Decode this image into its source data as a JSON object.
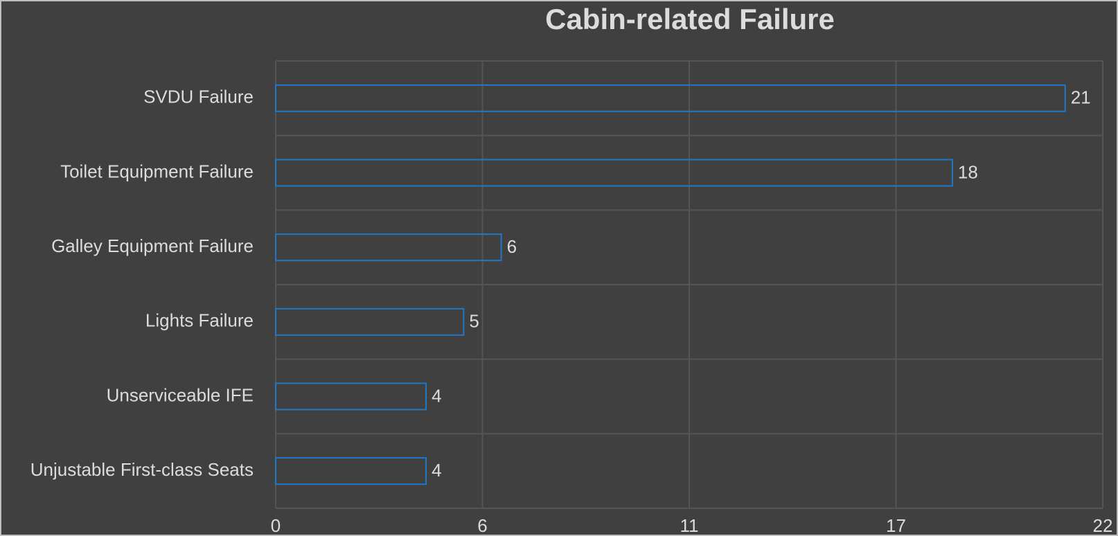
{
  "chart_data": {
    "type": "bar",
    "orientation": "horizontal",
    "title": "Cabin-related Failure",
    "categories": [
      "SVDU Failure",
      "Toilet Equipment Failure",
      "Galley Equipment Failure",
      "Lights Failure",
      "Unserviceable IFE",
      "Unjustable First-class Seats"
    ],
    "values": [
      21,
      18,
      6,
      5,
      4,
      4
    ],
    "color": "#1f78c8",
    "xlim": [
      0,
      22
    ],
    "xticks": [
      0,
      {
        "value": 5.5,
        "label": "6"
      },
      11,
      {
        "value": 16.5,
        "label": "17"
      },
      22
    ],
    "grid": true
  }
}
